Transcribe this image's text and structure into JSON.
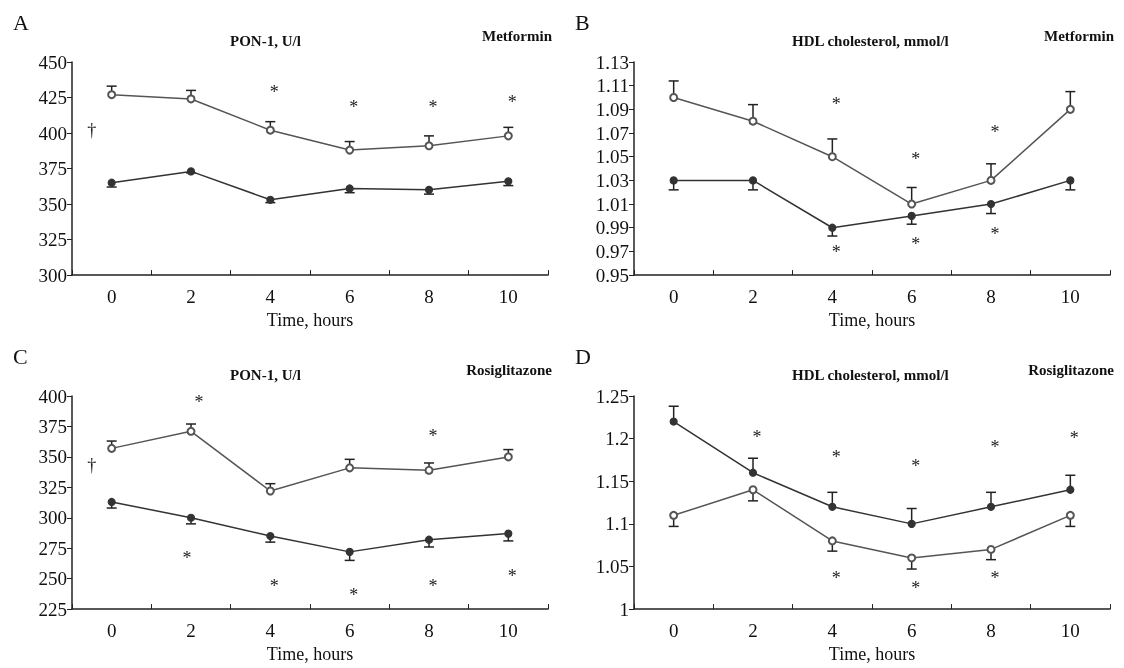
{
  "chart_data": [
    {
      "type": "line",
      "title": "A",
      "subtitle": "PON-1, U/l",
      "xlabel": "Time, hours",
      "categories": [
        "0",
        "2",
        "4",
        "6",
        "8",
        "10"
      ],
      "marker": "circle",
      "line_style": "solid",
      "grid": false,
      "ylim": [
        300,
        450
      ],
      "yticks": [
        300,
        325,
        350,
        375,
        400,
        425,
        450
      ],
      "series": [
        {
          "color": "#555555",
          "values": [
            427,
            424,
            402,
            388,
            391,
            398
          ],
          "errors": [
            [
              427,
              433
            ],
            [
              424,
              430
            ],
            [
              402,
              408
            ],
            [
              388,
              394
            ],
            [
              391,
              398
            ],
            [
              398,
              404
            ]
          ]
        },
        {
          "color": "#333333",
          "values": [
            365,
            373,
            353,
            361,
            360,
            366
          ],
          "errors": [
            [
              362,
              365
            ],
            [
              372,
              373
            ],
            [
              351,
              353
            ],
            [
              358,
              361
            ],
            [
              357,
              360
            ],
            [
              363,
              366
            ]
          ]
        }
      ],
      "annotations": [
        "Metformin",
        "†",
        "*",
        "*",
        "*",
        "*"
      ]
    },
    {
      "type": "line",
      "title": "B",
      "subtitle": "HDL cholesterol, mmol/l",
      "xlabel": "Time, hours",
      "categories": [
        "0",
        "2",
        "4",
        "6",
        "8",
        "10"
      ],
      "marker": "circle",
      "line_style": "solid",
      "grid": false,
      "ylim": [
        0.95,
        1.13
      ],
      "yticks": [
        0.95,
        0.97,
        0.99,
        1.01,
        1.03,
        1.05,
        1.07,
        1.09,
        1.11,
        1.13
      ],
      "series": [
        {
          "color": "#555555",
          "values": [
            1.1,
            1.08,
            1.05,
            1.01,
            1.03,
            1.09
          ],
          "errors": [
            [
              1.1,
              1.114
            ],
            [
              1.08,
              1.094
            ],
            [
              1.05,
              1.065
            ],
            [
              1.01,
              1.024
            ],
            [
              1.03,
              1.044
            ],
            [
              1.09,
              1.105
            ]
          ]
        },
        {
          "color": "#333333",
          "values": [
            1.03,
            1.03,
            0.99,
            1.0,
            1.01,
            1.03
          ],
          "errors": [
            [
              1.022,
              1.03
            ],
            [
              1.022,
              1.03
            ],
            [
              0.983,
              0.99
            ],
            [
              0.993,
              1.0
            ],
            [
              1.002,
              1.01
            ],
            [
              1.022,
              1.03
            ]
          ]
        }
      ],
      "annotations": [
        "Metformin",
        "*",
        "*",
        "*",
        "*",
        "*",
        "*"
      ]
    },
    {
      "type": "line",
      "title": "C",
      "subtitle": "PON-1, U/l",
      "xlabel": "Time, hours",
      "categories": [
        "0",
        "2",
        "4",
        "6",
        "8",
        "10"
      ],
      "marker": "circle",
      "line_style": "solid",
      "grid": false,
      "ylim": [
        225,
        400
      ],
      "yticks": [
        225,
        250,
        275,
        300,
        325,
        350,
        375,
        400
      ],
      "series": [
        {
          "color": "#555555",
          "values": [
            357,
            371,
            322,
            341,
            339,
            350
          ],
          "errors": [
            [
              357,
              363
            ],
            [
              371,
              377
            ],
            [
              322,
              328
            ],
            [
              341,
              348
            ],
            [
              339,
              345
            ],
            [
              350,
              356
            ]
          ]
        },
        {
          "color": "#333333",
          "values": [
            313,
            300,
            285,
            272,
            282,
            287
          ],
          "errors": [
            [
              308,
              313
            ],
            [
              295,
              300
            ],
            [
              280,
              285
            ],
            [
              265,
              272
            ],
            [
              276,
              282
            ],
            [
              281,
              287
            ]
          ]
        }
      ],
      "annotations": [
        "Rosiglitazone",
        "†",
        "*",
        "*",
        "*",
        "*",
        "*",
        "*",
        "*"
      ]
    },
    {
      "type": "line",
      "title": "D",
      "subtitle": "HDL cholesterol, mmol/l",
      "xlabel": "Time, hours",
      "categories": [
        "0",
        "2",
        "4",
        "6",
        "8",
        "10"
      ],
      "marker": "circle",
      "line_style": "solid",
      "grid": false,
      "ylim": [
        1,
        1.25
      ],
      "yticks": [
        1,
        1.05,
        1.1,
        1.15,
        1.2,
        1.25
      ],
      "series": [
        {
          "color": "#555555",
          "values": [
            1.11,
            1.14,
            1.08,
            1.06,
            1.07,
            1.11
          ],
          "errors": [
            [
              1.097,
              1.11
            ],
            [
              1.127,
              1.14
            ],
            [
              1.068,
              1.08
            ],
            [
              1.047,
              1.06
            ],
            [
              1.058,
              1.07
            ],
            [
              1.097,
              1.11
            ]
          ]
        },
        {
          "color": "#333333",
          "values": [
            1.22,
            1.16,
            1.12,
            1.1,
            1.12,
            1.14
          ],
          "errors": [
            [
              1.22,
              1.238
            ],
            [
              1.16,
              1.177
            ],
            [
              1.12,
              1.137
            ],
            [
              1.1,
              1.118
            ],
            [
              1.12,
              1.137
            ],
            [
              1.14,
              1.157
            ]
          ]
        }
      ],
      "annotations": [
        "Rosiglitazone",
        "*",
        "*",
        "*",
        "*",
        "*",
        "*",
        "*",
        "*"
      ]
    }
  ]
}
